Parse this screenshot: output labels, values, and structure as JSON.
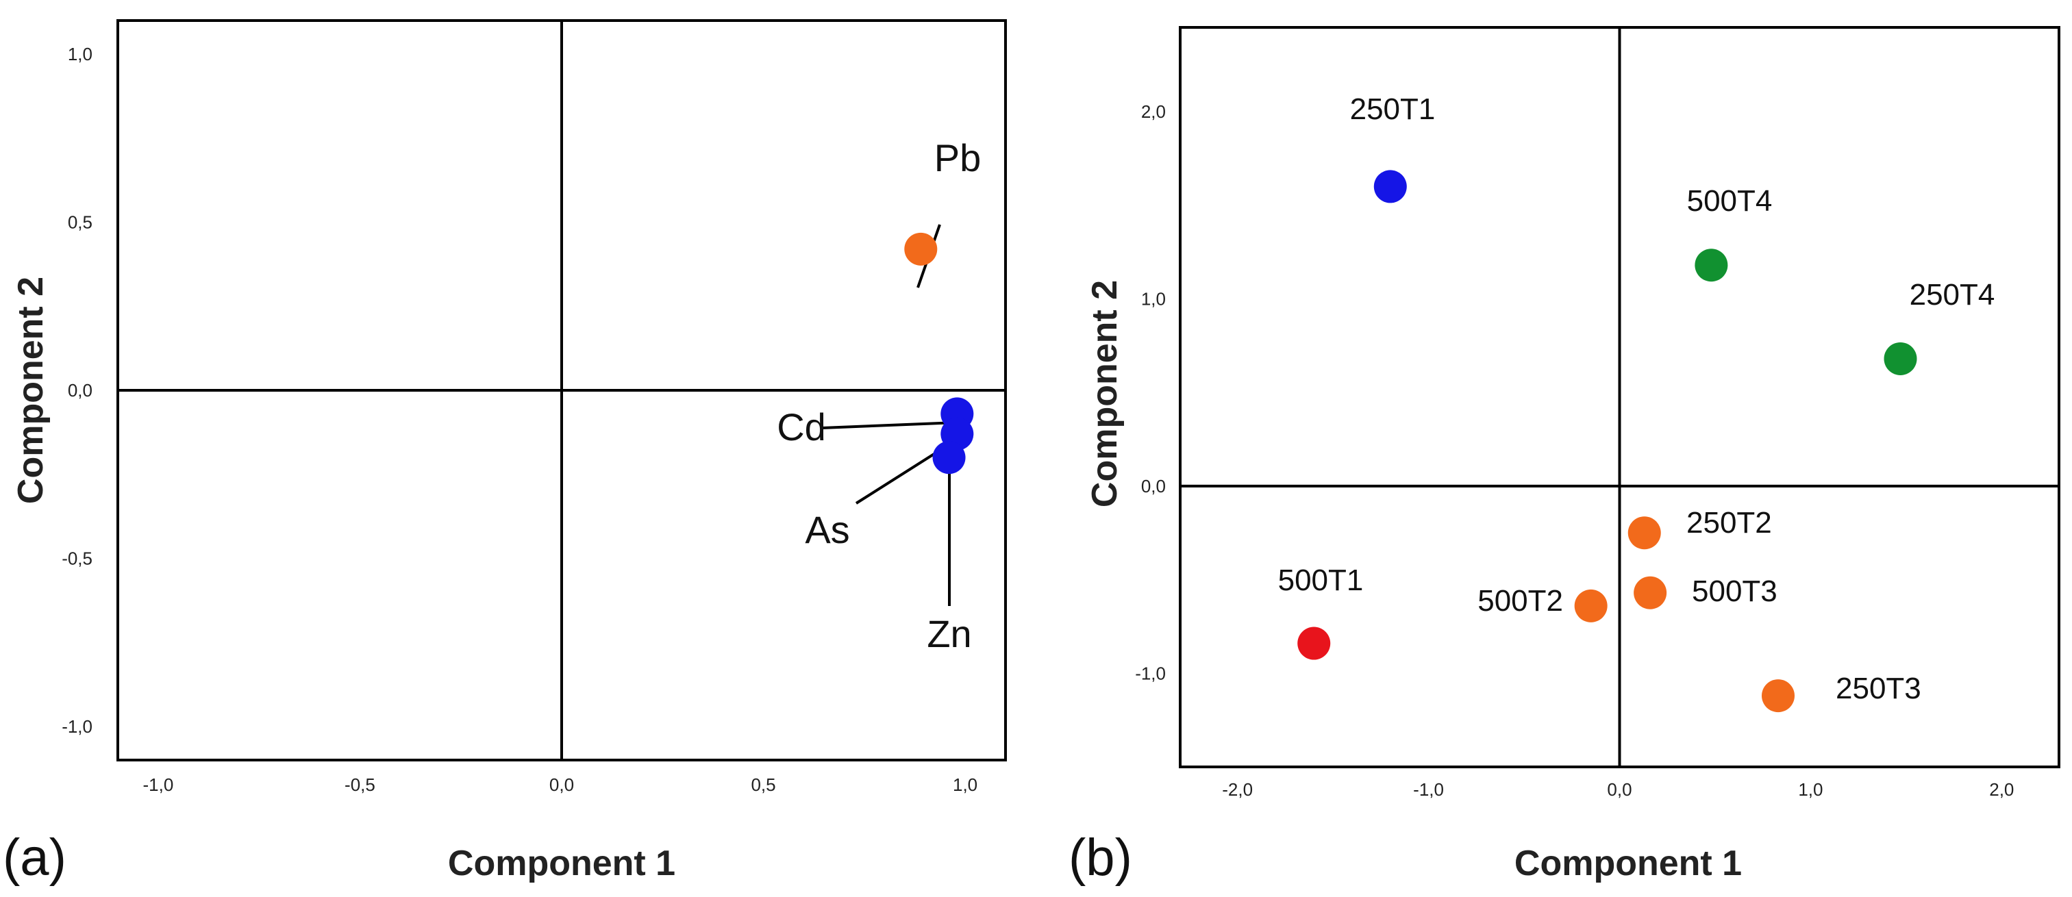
{
  "chart_data": [
    {
      "type": "scatter",
      "panel_label": "(a)",
      "title": "",
      "xlabel": "Component 1",
      "ylabel": "Component 2",
      "xlim": [
        -1.1,
        1.1
      ],
      "ylim": [
        -1.1,
        1.1
      ],
      "x_ticks": [
        -1.0,
        -0.5,
        0.0,
        0.5,
        1.0
      ],
      "x_tick_labels": [
        "-1,0",
        "-0,5",
        "0,0",
        "0,5",
        "1,0"
      ],
      "y_ticks": [
        1.0,
        0.5,
        0.0,
        -0.5,
        -1.0
      ],
      "y_tick_labels": [
        "1,0",
        "0,5",
        "0,0",
        "-0,5",
        "-1,0"
      ],
      "grid": false,
      "reference_lines": {
        "x": 0,
        "y": 0
      },
      "points": [
        {
          "label": "Pb",
          "x": 0.89,
          "y": 0.42,
          "color": "#f26a1b"
        },
        {
          "label": "Cd",
          "x": 0.98,
          "y": -0.07,
          "color": "#1515e6"
        },
        {
          "label": "As",
          "x": 0.98,
          "y": -0.13,
          "color": "#1515e6"
        },
        {
          "label": "Zn",
          "x": 0.96,
          "y": -0.2,
          "color": "#1515e6"
        }
      ]
    },
    {
      "type": "scatter",
      "panel_label": "(b)",
      "title": "",
      "xlabel": "Component 1",
      "ylabel": "Component 2",
      "xlim": [
        -2.3,
        2.3
      ],
      "ylim": [
        -1.5,
        2.45
      ],
      "x_ticks": [
        -2.0,
        -1.0,
        0.0,
        1.0,
        2.0
      ],
      "x_tick_labels": [
        "-2,0",
        "-1,0",
        "0,0",
        "1,0",
        "2,0"
      ],
      "y_ticks": [
        2.0,
        1.0,
        0.0,
        -1.0
      ],
      "y_tick_labels": [
        "2,0",
        "1,0",
        "0,0",
        "-1,0"
      ],
      "grid": false,
      "reference_lines": {
        "x": 0,
        "y": 0
      },
      "points": [
        {
          "label": "250T1",
          "x": -1.2,
          "y": 1.6,
          "color": "#1515e6"
        },
        {
          "label": "500T4",
          "x": 0.48,
          "y": 1.18,
          "color": "#119130"
        },
        {
          "label": "250T4",
          "x": 1.47,
          "y": 0.68,
          "color": "#119130"
        },
        {
          "label": "250T2",
          "x": 0.13,
          "y": -0.25,
          "color": "#f26a1b"
        },
        {
          "label": "500T3",
          "x": 0.16,
          "y": -0.57,
          "color": "#f26a1b"
        },
        {
          "label": "500T2",
          "x": -0.15,
          "y": -0.64,
          "color": "#f26a1b"
        },
        {
          "label": "500T1",
          "x": -1.6,
          "y": -0.84,
          "color": "#e8141c"
        },
        {
          "label": "250T3",
          "x": 0.83,
          "y": -1.12,
          "color": "#f26a1b"
        }
      ]
    }
  ]
}
